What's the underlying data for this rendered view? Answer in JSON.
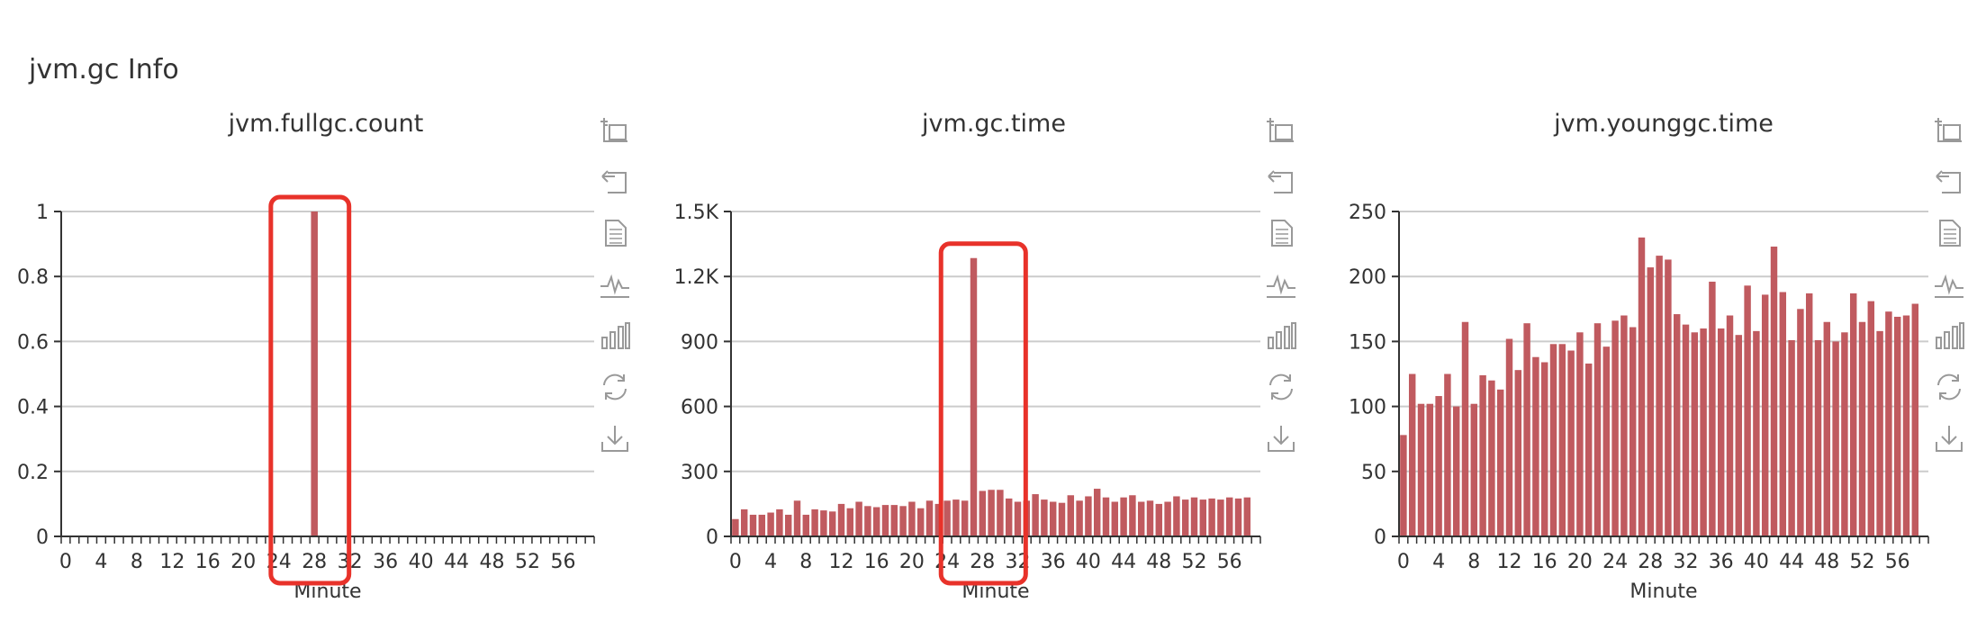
{
  "section": {
    "title": "jvm.gc Info"
  },
  "toolbar_icons": [
    "zoom-select-icon",
    "zoom-reset-icon",
    "data-view-icon",
    "line-chart-icon",
    "bar-chart-icon",
    "restore-icon",
    "save-image-icon"
  ],
  "colors": {
    "bar": "#c05a5f",
    "grid": "#cccccc",
    "axis": "#333333",
    "highlight": "#e8322a",
    "icon": "#999999"
  },
  "chart_data": [
    {
      "type": "bar",
      "title": "jvm.fullgc.count",
      "xlabel": "Minute",
      "ylim": [
        0,
        1
      ],
      "y_ticks": [
        "0",
        "0.2",
        "0.4",
        "0.6",
        "0.8",
        "1"
      ],
      "y_tick_values": [
        0,
        0.2,
        0.4,
        0.6,
        0.8,
        1
      ],
      "x_tick_labels": [
        "0",
        "4",
        "8",
        "12",
        "16",
        "20",
        "24",
        "28",
        "32",
        "36",
        "40",
        "44",
        "48",
        "52",
        "56"
      ],
      "x": [
        0,
        1,
        2,
        3,
        4,
        5,
        6,
        7,
        8,
        9,
        10,
        11,
        12,
        13,
        14,
        15,
        16,
        17,
        18,
        19,
        20,
        21,
        22,
        23,
        24,
        25,
        26,
        27,
        28,
        29,
        30,
        31,
        32,
        33,
        34,
        35,
        36,
        37,
        38,
        39,
        40,
        41,
        42,
        43,
        44,
        45,
        46,
        47,
        48,
        49,
        50,
        51,
        52,
        53,
        54,
        55,
        56,
        57,
        58,
        59
      ],
      "values": [
        0,
        0,
        0,
        0,
        0,
        0,
        0,
        0,
        0,
        0,
        0,
        0,
        0,
        0,
        0,
        0,
        0,
        0,
        0,
        0,
        0,
        0,
        0,
        0,
        0,
        0,
        0,
        0,
        1,
        0,
        0,
        0,
        0,
        0,
        0,
        0,
        0,
        0,
        0,
        0,
        0,
        0,
        0,
        0,
        0,
        0,
        0,
        0,
        0,
        0,
        0,
        0,
        0,
        0,
        0,
        0,
        0,
        0,
        0,
        0
      ],
      "highlight_x_range": [
        23.6,
        32.4
      ]
    },
    {
      "type": "bar",
      "title": "jvm.gc.time",
      "xlabel": "Minute",
      "ylim": [
        0,
        1500
      ],
      "y_ticks": [
        "0",
        "300",
        "600",
        "900",
        "1.2K",
        "1.5K"
      ],
      "y_tick_values": [
        0,
        300,
        600,
        900,
        1200,
        1500
      ],
      "x_tick_labels": [
        "0",
        "4",
        "8",
        "12",
        "16",
        "20",
        "24",
        "28",
        "32",
        "36",
        "40",
        "44",
        "48",
        "52",
        "56"
      ],
      "x": [
        0,
        1,
        2,
        3,
        4,
        5,
        6,
        7,
        8,
        9,
        10,
        11,
        12,
        13,
        14,
        15,
        16,
        17,
        18,
        19,
        20,
        21,
        22,
        23,
        24,
        25,
        26,
        27,
        28,
        29,
        30,
        31,
        32,
        33,
        34,
        35,
        36,
        37,
        38,
        39,
        40,
        41,
        42,
        43,
        44,
        45,
        46,
        47,
        48,
        49,
        50,
        51,
        52,
        53,
        54,
        55,
        56,
        57,
        58,
        59
      ],
      "values": [
        80,
        125,
        100,
        100,
        110,
        125,
        100,
        165,
        100,
        125,
        120,
        115,
        150,
        130,
        160,
        140,
        135,
        145,
        145,
        140,
        160,
        130,
        165,
        150,
        165,
        170,
        165,
        1285,
        210,
        215,
        215,
        175,
        160,
        165,
        195,
        170,
        160,
        155,
        190,
        165,
        185,
        220,
        180,
        160,
        180,
        190,
        160,
        165,
        150,
        160,
        185,
        170,
        180,
        170,
        175,
        170,
        180,
        175,
        180,
        0
      ],
      "highlight_x_range": [
        23.8,
        33.4
      ]
    },
    {
      "type": "bar",
      "title": "jvm.younggc.time",
      "xlabel": "Minute",
      "ylim": [
        0,
        250
      ],
      "y_ticks": [
        "0",
        "50",
        "100",
        "150",
        "200",
        "250"
      ],
      "y_tick_values": [
        0,
        50,
        100,
        150,
        200,
        250
      ],
      "x_tick_labels": [
        "0",
        "4",
        "8",
        "12",
        "16",
        "20",
        "24",
        "28",
        "32",
        "36",
        "40",
        "44",
        "48",
        "52",
        "56"
      ],
      "x": [
        0,
        1,
        2,
        3,
        4,
        5,
        6,
        7,
        8,
        9,
        10,
        11,
        12,
        13,
        14,
        15,
        16,
        17,
        18,
        19,
        20,
        21,
        22,
        23,
        24,
        25,
        26,
        27,
        28,
        29,
        30,
        31,
        32,
        33,
        34,
        35,
        36,
        37,
        38,
        39,
        40,
        41,
        42,
        43,
        44,
        45,
        46,
        47,
        48,
        49,
        50,
        51,
        52,
        53,
        54,
        55,
        56,
        57,
        58,
        59
      ],
      "values": [
        78,
        125,
        102,
        102,
        108,
        125,
        100,
        165,
        102,
        124,
        120,
        113,
        152,
        128,
        164,
        138,
        134,
        148,
        148,
        143,
        157,
        133,
        164,
        146,
        166,
        170,
        161,
        230,
        207,
        216,
        213,
        171,
        163,
        157,
        160,
        196,
        160,
        170,
        155,
        193,
        158,
        186,
        223,
        188,
        151,
        175,
        187,
        151,
        165,
        150,
        157,
        187,
        165,
        181,
        158,
        173,
        169,
        170,
        179,
        0
      ]
    }
  ]
}
